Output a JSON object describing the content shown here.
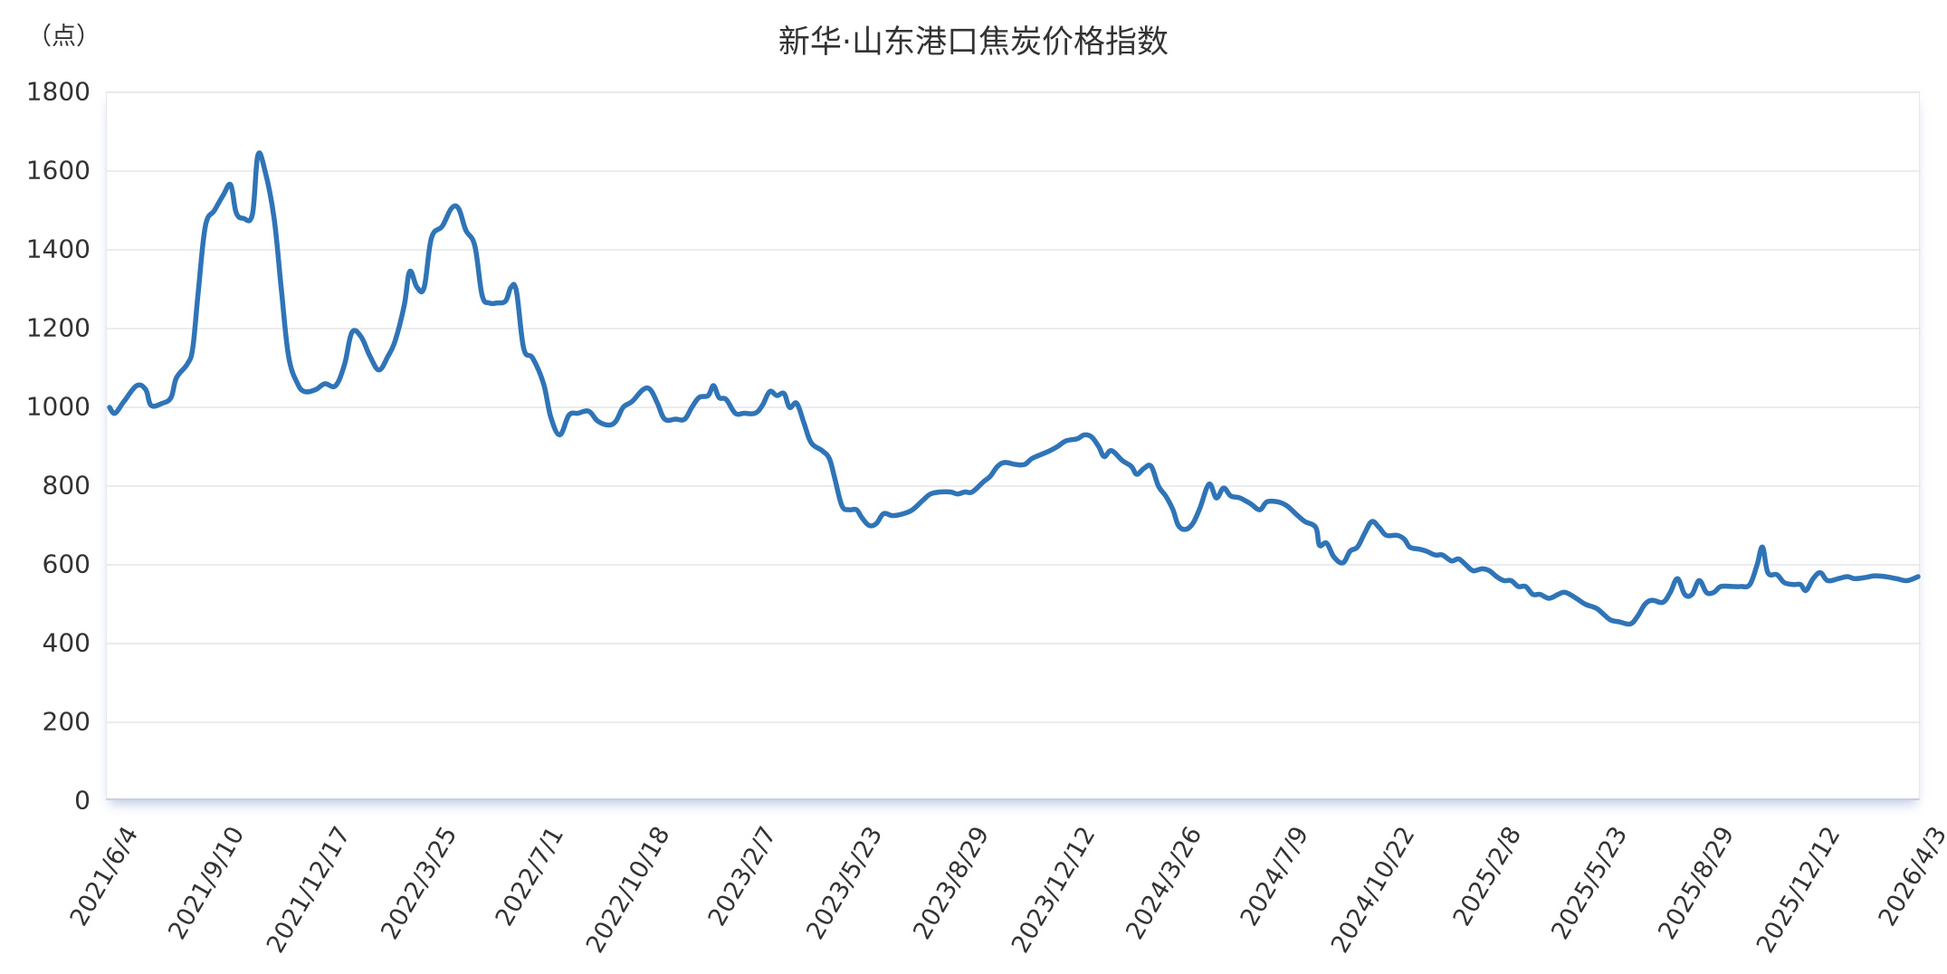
{
  "header": {
    "title": "新华·山东港口焦炭价格指数",
    "unit": "（点）"
  },
  "colors": {
    "line": "#2f74b6",
    "grid": "#e6e6e6",
    "text": "#333333"
  },
  "chart_data": {
    "type": "line",
    "title": "新华·山东港口焦炭价格指数",
    "xlabel": "",
    "ylabel": "（点）",
    "ylim": [
      0,
      1800
    ],
    "yticks": [
      0,
      200,
      400,
      600,
      800,
      1000,
      1200,
      1400,
      1600,
      1800
    ],
    "grid": true,
    "legend": null,
    "x_tick_labels": [
      "2021/6/4",
      "2021/9/10",
      "2021/12/17",
      "2022/3/25",
      "2022/7/1",
      "2022/10/18",
      "2023/2/7",
      "2023/5/23",
      "2023/8/29",
      "2023/12/12",
      "2024/3/26",
      "2024/7/9",
      "2024/10/22",
      "2025/2/8",
      "2025/5/23",
      "2025/8/29",
      "2025/12/12",
      "2026/4/3"
    ],
    "x_start": "2021/6/4",
    "x_end": "2026/4/3",
    "series": [
      {
        "name": "新华·山东港口焦炭价格指数",
        "note": "x = fractional position along time axis (0 = 2021/6/4, 1 = 2026/4/3)",
        "points": [
          [
            0.0,
            1000
          ],
          [
            0.003,
            985
          ],
          [
            0.008,
            1015
          ],
          [
            0.015,
            1055
          ],
          [
            0.02,
            1045
          ],
          [
            0.023,
            1005
          ],
          [
            0.029,
            1010
          ],
          [
            0.034,
            1025
          ],
          [
            0.037,
            1075
          ],
          [
            0.043,
            1110
          ],
          [
            0.046,
            1150
          ],
          [
            0.049,
            1290
          ],
          [
            0.053,
            1460
          ],
          [
            0.058,
            1500
          ],
          [
            0.063,
            1540
          ],
          [
            0.067,
            1565
          ],
          [
            0.07,
            1495
          ],
          [
            0.074,
            1480
          ],
          [
            0.079,
            1490
          ],
          [
            0.082,
            1640
          ],
          [
            0.086,
            1600
          ],
          [
            0.091,
            1480
          ],
          [
            0.095,
            1300
          ],
          [
            0.099,
            1130
          ],
          [
            0.104,
            1060
          ],
          [
            0.108,
            1040
          ],
          [
            0.114,
            1045
          ],
          [
            0.119,
            1060
          ],
          [
            0.125,
            1055
          ],
          [
            0.13,
            1110
          ],
          [
            0.134,
            1190
          ],
          [
            0.139,
            1180
          ],
          [
            0.144,
            1130
          ],
          [
            0.149,
            1095
          ],
          [
            0.154,
            1130
          ],
          [
            0.158,
            1170
          ],
          [
            0.163,
            1260
          ],
          [
            0.166,
            1345
          ],
          [
            0.17,
            1305
          ],
          [
            0.174,
            1305
          ],
          [
            0.178,
            1430
          ],
          [
            0.184,
            1460
          ],
          [
            0.189,
            1505
          ],
          [
            0.193,
            1505
          ],
          [
            0.197,
            1450
          ],
          [
            0.202,
            1410
          ],
          [
            0.206,
            1285
          ],
          [
            0.21,
            1265
          ],
          [
            0.214,
            1265
          ],
          [
            0.219,
            1270
          ],
          [
            0.222,
            1305
          ],
          [
            0.225,
            1295
          ],
          [
            0.229,
            1150
          ],
          [
            0.234,
            1125
          ],
          [
            0.24,
            1060
          ],
          [
            0.244,
            975
          ],
          [
            0.249,
            930
          ],
          [
            0.254,
            980
          ],
          [
            0.259,
            985
          ],
          [
            0.265,
            990
          ],
          [
            0.27,
            965
          ],
          [
            0.276,
            955
          ],
          [
            0.28,
            965
          ],
          [
            0.284,
            1000
          ],
          [
            0.289,
            1015
          ],
          [
            0.295,
            1045
          ],
          [
            0.299,
            1045
          ],
          [
            0.303,
            1010
          ],
          [
            0.307,
            970
          ],
          [
            0.313,
            970
          ],
          [
            0.318,
            970
          ],
          [
            0.322,
            1000
          ],
          [
            0.326,
            1025
          ],
          [
            0.331,
            1030
          ],
          [
            0.334,
            1055
          ],
          [
            0.337,
            1025
          ],
          [
            0.341,
            1020
          ],
          [
            0.346,
            985
          ],
          [
            0.351,
            985
          ],
          [
            0.357,
            985
          ],
          [
            0.361,
            1005
          ],
          [
            0.365,
            1040
          ],
          [
            0.369,
            1030
          ],
          [
            0.373,
            1035
          ],
          [
            0.376,
            1000
          ],
          [
            0.38,
            1010
          ],
          [
            0.384,
            960
          ],
          [
            0.388,
            910
          ],
          [
            0.394,
            890
          ],
          [
            0.398,
            870
          ],
          [
            0.401,
            820
          ],
          [
            0.405,
            750
          ],
          [
            0.409,
            740
          ],
          [
            0.413,
            740
          ],
          [
            0.416,
            720
          ],
          [
            0.42,
            700
          ],
          [
            0.424,
            705
          ],
          [
            0.428,
            730
          ],
          [
            0.433,
            725
          ],
          [
            0.439,
            730
          ],
          [
            0.444,
            740
          ],
          [
            0.45,
            765
          ],
          [
            0.454,
            780
          ],
          [
            0.459,
            785
          ],
          [
            0.465,
            785
          ],
          [
            0.469,
            780
          ],
          [
            0.473,
            785
          ],
          [
            0.477,
            785
          ],
          [
            0.483,
            810
          ],
          [
            0.487,
            825
          ],
          [
            0.491,
            850
          ],
          [
            0.495,
            860
          ],
          [
            0.501,
            855
          ],
          [
            0.506,
            855
          ],
          [
            0.51,
            870
          ],
          [
            0.515,
            880
          ],
          [
            0.52,
            890
          ],
          [
            0.524,
            900
          ],
          [
            0.529,
            915
          ],
          [
            0.535,
            920
          ],
          [
            0.539,
            930
          ],
          [
            0.543,
            925
          ],
          [
            0.547,
            900
          ],
          [
            0.55,
            875
          ],
          [
            0.554,
            890
          ],
          [
            0.56,
            865
          ],
          [
            0.565,
            850
          ],
          [
            0.568,
            830
          ],
          [
            0.572,
            845
          ],
          [
            0.576,
            850
          ],
          [
            0.58,
            800
          ],
          [
            0.584,
            775
          ],
          [
            0.588,
            740
          ],
          [
            0.591,
            700
          ],
          [
            0.595,
            690
          ],
          [
            0.599,
            705
          ],
          [
            0.603,
            745
          ],
          [
            0.608,
            805
          ],
          [
            0.612,
            770
          ],
          [
            0.616,
            795
          ],
          [
            0.62,
            775
          ],
          [
            0.625,
            770
          ],
          [
            0.631,
            755
          ],
          [
            0.636,
            740
          ],
          [
            0.64,
            760
          ],
          [
            0.646,
            760
          ],
          [
            0.651,
            750
          ],
          [
            0.657,
            725
          ],
          [
            0.661,
            710
          ],
          [
            0.667,
            695
          ],
          [
            0.669,
            650
          ],
          [
            0.673,
            655
          ],
          [
            0.677,
            620
          ],
          [
            0.682,
            605
          ],
          [
            0.686,
            635
          ],
          [
            0.69,
            645
          ],
          [
            0.694,
            680
          ],
          [
            0.698,
            710
          ],
          [
            0.702,
            695
          ],
          [
            0.706,
            675
          ],
          [
            0.712,
            675
          ],
          [
            0.716,
            665
          ],
          [
            0.719,
            645
          ],
          [
            0.724,
            640
          ],
          [
            0.728,
            635
          ],
          [
            0.733,
            625
          ],
          [
            0.737,
            625
          ],
          [
            0.742,
            610
          ],
          [
            0.746,
            615
          ],
          [
            0.75,
            600
          ],
          [
            0.754,
            585
          ],
          [
            0.759,
            590
          ],
          [
            0.763,
            585
          ],
          [
            0.767,
            570
          ],
          [
            0.771,
            560
          ],
          [
            0.775,
            560
          ],
          [
            0.779,
            545
          ],
          [
            0.783,
            545
          ],
          [
            0.787,
            525
          ],
          [
            0.791,
            525
          ],
          [
            0.796,
            515
          ],
          [
            0.801,
            525
          ],
          [
            0.805,
            530
          ],
          [
            0.811,
            515
          ],
          [
            0.816,
            500
          ],
          [
            0.822,
            490
          ],
          [
            0.826,
            475
          ],
          [
            0.83,
            460
          ],
          [
            0.835,
            455
          ],
          [
            0.841,
            450
          ],
          [
            0.845,
            470
          ],
          [
            0.849,
            500
          ],
          [
            0.853,
            510
          ],
          [
            0.859,
            505
          ],
          [
            0.863,
            530
          ],
          [
            0.867,
            565
          ],
          [
            0.871,
            525
          ],
          [
            0.875,
            525
          ],
          [
            0.879,
            560
          ],
          [
            0.883,
            530
          ],
          [
            0.887,
            530
          ],
          [
            0.891,
            545
          ],
          [
            0.897,
            545
          ],
          [
            0.902,
            545
          ],
          [
            0.907,
            550
          ],
          [
            0.911,
            600
          ],
          [
            0.914,
            645
          ],
          [
            0.917,
            580
          ],
          [
            0.922,
            575
          ],
          [
            0.926,
            555
          ],
          [
            0.931,
            550
          ],
          [
            0.935,
            550
          ],
          [
            0.938,
            535
          ],
          [
            0.942,
            565
          ],
          [
            0.946,
            580
          ],
          [
            0.95,
            560
          ],
          [
            0.956,
            565
          ],
          [
            0.961,
            570
          ],
          [
            0.965,
            565
          ],
          [
            0.971,
            568
          ],
          [
            0.976,
            572
          ],
          [
            0.982,
            570
          ],
          [
            0.988,
            565
          ],
          [
            0.994,
            560
          ],
          [
            1.0,
            570
          ]
        ]
      }
    ]
  }
}
